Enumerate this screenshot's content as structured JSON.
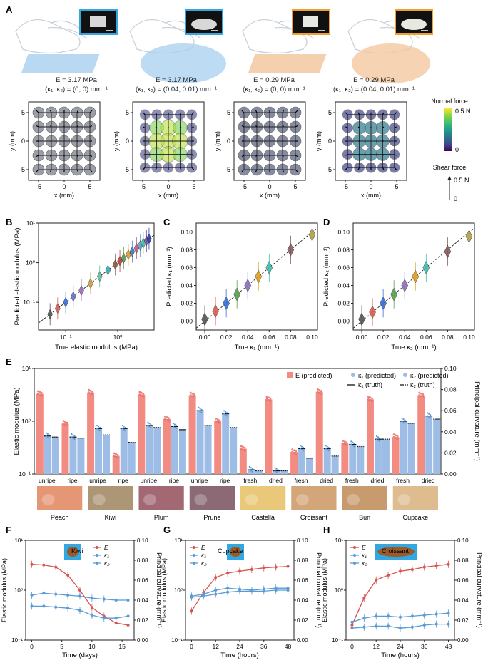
{
  "colors": {
    "blue_bar": "#9dbde6",
    "red_bar": "#f28b82",
    "red_line": "#d9534f",
    "blue_line": "#5b9bd5",
    "axis": "#222222",
    "sensor_gray": "#8a8f99",
    "transparent_sample": "#a8cff0",
    "opaque_sample": "#f3c8a0"
  },
  "panel_labels": {
    "A": "A",
    "B": "B",
    "C": "C",
    "D": "D",
    "E": "E",
    "F": "F",
    "G": "G",
    "H": "H"
  },
  "panelA": {
    "items": [
      {
        "e_label": "E = 3.17 MPa",
        "k_label": "(κ₁, κ₂) = (0, 0) mm⁻¹",
        "frame": "#33a8e0"
      },
      {
        "e_label": "E = 3.17 MPa",
        "k_label": "(κ₁, κ₂) = (0.04, 0.01) mm⁻¹",
        "frame": "#33a8e0"
      },
      {
        "e_label": "E = 0.29 MPa",
        "k_label": "(κ₁, κ₂) = (0, 0) mm⁻¹",
        "frame": "#f0a030"
      },
      {
        "e_label": "E = 0.29 MPa",
        "k_label": "(κ₁, κ₂) = (0.04, 0.01) mm⁻¹",
        "frame": "#f0a030"
      }
    ],
    "xlabel": "x (mm)",
    "ylabel": "y (mm)",
    "ticks": [
      "-5",
      "0",
      "5"
    ],
    "colorbar": {
      "title": "Normal force",
      "max": "0.5 N",
      "min": "0",
      "colors": [
        "#fde725",
        "#7ad151",
        "#22a884",
        "#2a788e",
        "#414487",
        "#440154"
      ]
    },
    "shear": {
      "title": "Shear force",
      "value": "0.5 N",
      "zero": "0"
    }
  },
  "chart_data": [
    {
      "id": "B",
      "type": "scatter",
      "xscale": "log",
      "yscale": "log",
      "xlabel": "True elastic modulus (MPa)",
      "ylabel": "Predicted elastic modulus (MPa)",
      "xlim": [
        0.03,
        5
      ],
      "ylim": [
        0.02,
        10
      ],
      "xticks": [
        {
          "v": 0.1,
          "t": "10⁻¹"
        },
        {
          "v": 1,
          "t": "10⁰"
        }
      ],
      "yticks": [
        {
          "v": 0.1,
          "t": "10⁻¹"
        },
        {
          "v": 1,
          "t": "10⁰"
        },
        {
          "v": 10,
          "t": "10¹"
        }
      ],
      "x": [
        0.05,
        0.07,
        0.1,
        0.14,
        0.2,
        0.3,
        0.45,
        0.65,
        0.9,
        1.1,
        1.3,
        1.6,
        1.9,
        2.3,
        2.7,
        3.1,
        3.6,
        4.0
      ],
      "y": [
        0.05,
        0.07,
        0.1,
        0.14,
        0.2,
        0.3,
        0.45,
        0.65,
        0.9,
        1.1,
        1.3,
        1.6,
        1.9,
        2.3,
        2.7,
        3.1,
        3.6,
        4.0
      ],
      "colors": [
        "#555",
        "#e05a4f",
        "#3a6fd8",
        "#6a6fd0",
        "#a070c0",
        "#d0a040",
        "#60c0a0",
        "#30b0c0",
        "#8a5a3a",
        "#c04040",
        "#5aa050",
        "#e0a020",
        "#4080d0",
        "#c06080",
        "#60a0d0",
        "#40c0a0",
        "#8050b0",
        "#3040a0"
      ]
    },
    {
      "id": "C",
      "type": "scatter",
      "xlabel": "True κ₁ (mm⁻¹)",
      "ylabel": "Predicted κ₁ (mm⁻¹)",
      "xlim": [
        -0.008,
        0.105
      ],
      "ylim": [
        -0.01,
        0.11
      ],
      "xticks": [
        {
          "v": 0,
          "t": "0.00"
        },
        {
          "v": 0.02,
          "t": "0.02"
        },
        {
          "v": 0.04,
          "t": "0.04"
        },
        {
          "v": 0.06,
          "t": "0.06"
        },
        {
          "v": 0.08,
          "t": "0.08"
        },
        {
          "v": 0.1,
          "t": "0.10"
        }
      ],
      "yticks": [
        {
          "v": 0,
          "t": "0.00"
        },
        {
          "v": 0.02,
          "t": "0.02"
        },
        {
          "v": 0.04,
          "t": "0.04"
        },
        {
          "v": 0.06,
          "t": "0.06"
        },
        {
          "v": 0.08,
          "t": "0.08"
        },
        {
          "v": 0.1,
          "t": "0.10"
        }
      ],
      "x": [
        0,
        0.01,
        0.02,
        0.03,
        0.04,
        0.05,
        0.06,
        0.08,
        0.1
      ],
      "y": [
        0.002,
        0.011,
        0.02,
        0.03,
        0.04,
        0.05,
        0.06,
        0.08,
        0.097
      ],
      "colors": [
        "#555",
        "#e05a4f",
        "#3a6fd8",
        "#5aa050",
        "#8a70c0",
        "#e0a020",
        "#40c0b0",
        "#8a5a5a",
        "#b0a040"
      ]
    },
    {
      "id": "D",
      "type": "scatter",
      "xlabel": "True κ₂ (mm⁻¹)",
      "ylabel": "Predicted κ₂ (mm⁻¹)",
      "xlim": [
        -0.008,
        0.105
      ],
      "ylim": [
        -0.01,
        0.11
      ],
      "xticks": [
        {
          "v": 0,
          "t": "0.00"
        },
        {
          "v": 0.02,
          "t": "0.02"
        },
        {
          "v": 0.04,
          "t": "0.04"
        },
        {
          "v": 0.06,
          "t": "0.06"
        },
        {
          "v": 0.08,
          "t": "0.08"
        },
        {
          "v": 0.1,
          "t": "0.10"
        }
      ],
      "yticks": [
        {
          "v": 0,
          "t": "0.00"
        },
        {
          "v": 0.02,
          "t": "0.02"
        },
        {
          "v": 0.04,
          "t": "0.04"
        },
        {
          "v": 0.06,
          "t": "0.06"
        },
        {
          "v": 0.08,
          "t": "0.08"
        },
        {
          "v": 0.1,
          "t": "0.10"
        }
      ],
      "x": [
        0,
        0.01,
        0.02,
        0.03,
        0.04,
        0.05,
        0.06,
        0.08,
        0.1
      ],
      "y": [
        0.002,
        0.01,
        0.02,
        0.03,
        0.04,
        0.05,
        0.06,
        0.078,
        0.095
      ],
      "colors": [
        "#555",
        "#e05a4f",
        "#3a6fd8",
        "#5aa050",
        "#8a70c0",
        "#e0a020",
        "#40c0b0",
        "#8a5a5a",
        "#b0a040"
      ]
    },
    {
      "id": "E",
      "type": "bar",
      "ylabel": "Elastic modulus (MPa)",
      "y2label": "Principal curvature (mm⁻¹)",
      "ylim": [
        0.1,
        10
      ],
      "y2lim": [
        0,
        0.1
      ],
      "yticks": [
        {
          "v": 0.1,
          "t": "10⁻¹"
        },
        {
          "v": 1,
          "t": "10⁰"
        },
        {
          "v": 10,
          "t": "10¹"
        }
      ],
      "y2ticks": [
        "0.00",
        "0.02",
        "0.04",
        "0.06",
        "0.08",
        "0.10"
      ],
      "legend": {
        "E": "E (predicted)",
        "k1p": "κ₁ (predicted)",
        "k2p": "κ₂ (predicted)",
        "k1t": "κ₁ (truth)",
        "k2t": "κ₂ (truth)"
      },
      "categories": [
        {
          "state": "unripe",
          "E": 3.3,
          "k1": 0.036,
          "k2": 0.035,
          "k1t": 0.036,
          "k2t": 0.035
        },
        {
          "state": "ripe",
          "E": 0.9,
          "k1": 0.035,
          "k2": 0.034,
          "k1t": 0.035,
          "k2t": 0.034
        },
        {
          "state": "unripe",
          "E": 3.5,
          "k1": 0.043,
          "k2": 0.037,
          "k1t": 0.043,
          "k2t": 0.037
        },
        {
          "state": "ripe",
          "E": 0.22,
          "k1": 0.043,
          "k2": 0.03,
          "k1t": 0.043,
          "k2t": 0.03
        },
        {
          "state": "unripe",
          "E": 3.2,
          "k1": 0.046,
          "k2": 0.044,
          "k1t": 0.046,
          "k2t": 0.044
        },
        {
          "state": "ripe",
          "E": 1.1,
          "k1": 0.045,
          "k2": 0.042,
          "k1t": 0.045,
          "k2t": 0.042
        },
        {
          "state": "unripe",
          "E": 3.1,
          "k1": 0.06,
          "k2": 0.046,
          "k1t": 0.06,
          "k2t": 0.046
        },
        {
          "state": "ripe",
          "E": 1.0,
          "k1": 0.057,
          "k2": 0.044,
          "k1t": 0.057,
          "k2t": 0.044
        },
        {
          "state": "fresh",
          "E": 0.3,
          "k1": 0.004,
          "k2": 0.003,
          "k1t": 0.004,
          "k2t": 0.003
        },
        {
          "state": "dried",
          "E": 2.6,
          "k1": 0.003,
          "k2": 0.003,
          "k1t": 0.003,
          "k2t": 0.003
        },
        {
          "state": "fresh",
          "E": 0.26,
          "k1": 0.024,
          "k2": 0.015,
          "k1t": 0.024,
          "k2t": 0.015
        },
        {
          "state": "dried",
          "E": 3.6,
          "k1": 0.024,
          "k2": 0.017,
          "k1t": 0.024,
          "k2t": 0.017
        },
        {
          "state": "fresh",
          "E": 0.38,
          "k1": 0.028,
          "k2": 0.026,
          "k1t": 0.028,
          "k2t": 0.026
        },
        {
          "state": "dried",
          "E": 2.6,
          "k1": 0.033,
          "k2": 0.033,
          "k1t": 0.033,
          "k2t": 0.033
        },
        {
          "state": "fresh",
          "E": 0.5,
          "k1": 0.05,
          "k2": 0.048,
          "k1t": 0.05,
          "k2t": 0.048
        },
        {
          "state": "dried",
          "E": 3.1,
          "k1": 0.055,
          "k2": 0.052,
          "k1t": 0.055,
          "k2t": 0.052
        }
      ],
      "groups": [
        "Peach",
        "Kiwi",
        "Plum",
        "Prune",
        "Castella",
        "Croissant",
        "Bun",
        "Cupcake"
      ]
    },
    {
      "id": "F",
      "type": "line",
      "title": "Kiwi",
      "xlabel": "Time (days)",
      "ylabel": "Elastic modulus (MPa)",
      "y2label": "Principal curvature (mm⁻¹)",
      "xlim": [
        -1,
        17
      ],
      "xticks": [
        0,
        5,
        10,
        15
      ],
      "ylim": [
        0.1,
        10
      ],
      "y2lim": [
        0,
        0.1
      ],
      "series": [
        {
          "name": "E",
          "axis": "left",
          "color": "#d9534f",
          "x": [
            0,
            2,
            4,
            6,
            8,
            10,
            12,
            14,
            16
          ],
          "y": [
            3.3,
            3.2,
            2.9,
            2.0,
            1.0,
            0.45,
            0.3,
            0.22,
            0.2
          ]
        },
        {
          "name": "κ₁",
          "axis": "right",
          "color": "#5b9bd5",
          "x": [
            0,
            2,
            4,
            6,
            8,
            10,
            12,
            14,
            16
          ],
          "y": [
            0.045,
            0.047,
            0.046,
            0.045,
            0.044,
            0.042,
            0.041,
            0.04,
            0.04
          ]
        },
        {
          "name": "κ₂",
          "axis": "right",
          "color": "#5b9bd5",
          "x": [
            0,
            2,
            4,
            6,
            8,
            10,
            12,
            14,
            16
          ],
          "y": [
            0.034,
            0.034,
            0.033,
            0.032,
            0.03,
            0.025,
            0.022,
            0.022,
            0.024
          ]
        }
      ]
    },
    {
      "id": "G",
      "type": "line",
      "title": "Cupcake",
      "xlabel": "Time (hours)",
      "ylabel": "Elastic modulus (MPa)",
      "y2label": "Principal curvature (mm⁻¹)",
      "xlim": [
        -3,
        51
      ],
      "xticks": [
        0,
        12,
        24,
        36,
        48
      ],
      "ylim": [
        0.1,
        10
      ],
      "y2lim": [
        0,
        0.1
      ],
      "series": [
        {
          "name": "E",
          "axis": "left",
          "color": "#d9534f",
          "x": [
            0,
            6,
            12,
            18,
            24,
            30,
            36,
            42,
            48
          ],
          "y": [
            0.38,
            0.9,
            1.8,
            2.2,
            2.4,
            2.6,
            2.8,
            2.9,
            3.0
          ]
        },
        {
          "name": "κ₁",
          "axis": "right",
          "color": "#5b9bd5",
          "x": [
            0,
            6,
            12,
            18,
            24,
            30,
            36,
            42,
            48
          ],
          "y": [
            0.044,
            0.046,
            0.05,
            0.052,
            0.051,
            0.05,
            0.051,
            0.052,
            0.052
          ]
        },
        {
          "name": "κ₂",
          "axis": "right",
          "color": "#5b9bd5",
          "x": [
            0,
            6,
            12,
            18,
            24,
            30,
            36,
            42,
            48
          ],
          "y": [
            0.043,
            0.044,
            0.046,
            0.048,
            0.049,
            0.049,
            0.049,
            0.05,
            0.05
          ]
        }
      ]
    },
    {
      "id": "H",
      "type": "line",
      "title": "Croissant",
      "xlabel": "Time (hours)",
      "ylabel": "Elastic modulus (MPa)",
      "y2label": "Principal curvature (mm⁻¹)",
      "xlim": [
        -3,
        51
      ],
      "xticks": [
        0,
        12,
        24,
        36,
        48
      ],
      "ylim": [
        0.1,
        10
      ],
      "y2lim": [
        0,
        0.1
      ],
      "series": [
        {
          "name": "E",
          "axis": "left",
          "color": "#d9534f",
          "x": [
            0,
            6,
            12,
            18,
            24,
            30,
            36,
            42,
            48
          ],
          "y": [
            0.2,
            0.7,
            1.6,
            2.0,
            2.4,
            2.6,
            2.9,
            3.1,
            3.3
          ]
        },
        {
          "name": "κ₁",
          "axis": "right",
          "color": "#5b9bd5",
          "x": [
            0,
            6,
            12,
            18,
            24,
            30,
            36,
            42,
            48
          ],
          "y": [
            0.018,
            0.022,
            0.024,
            0.024,
            0.023,
            0.024,
            0.025,
            0.026,
            0.027
          ]
        },
        {
          "name": "κ₂",
          "axis": "right",
          "color": "#5b9bd5",
          "x": [
            0,
            6,
            12,
            18,
            24,
            30,
            36,
            42,
            48
          ],
          "y": [
            0.012,
            0.013,
            0.014,
            0.014,
            0.012,
            0.013,
            0.015,
            0.016,
            0.016
          ]
        }
      ]
    }
  ]
}
